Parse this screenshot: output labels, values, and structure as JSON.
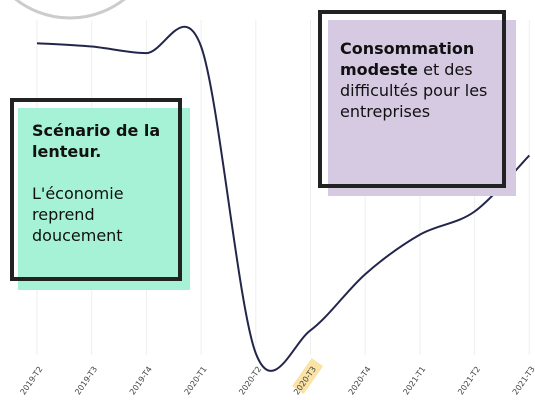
{
  "chart_data": {
    "type": "line",
    "categories": [
      "2019-T2",
      "2019-T3",
      "2019-T4",
      "2020-T1",
      "2020-T2",
      "2020-T3",
      "2020-T4",
      "2021-T1",
      "2021-T2",
      "2021-T3"
    ],
    "values": [
      96,
      95,
      93,
      95,
      2,
      9,
      26,
      38,
      45,
      62
    ],
    "color": "#23264a",
    "ylim": [
      0,
      100
    ],
    "grid": true,
    "highlight": "2020-T3",
    "annotations": [
      {
        "bold": "Scénario de la lenteur.",
        "text": "L'économie reprend doucement",
        "color": "#a6f2d6"
      },
      {
        "bold": "Consommation modeste",
        "text": "et des difficultés pour les entreprises",
        "color": "#d6c9e2"
      }
    ]
  }
}
